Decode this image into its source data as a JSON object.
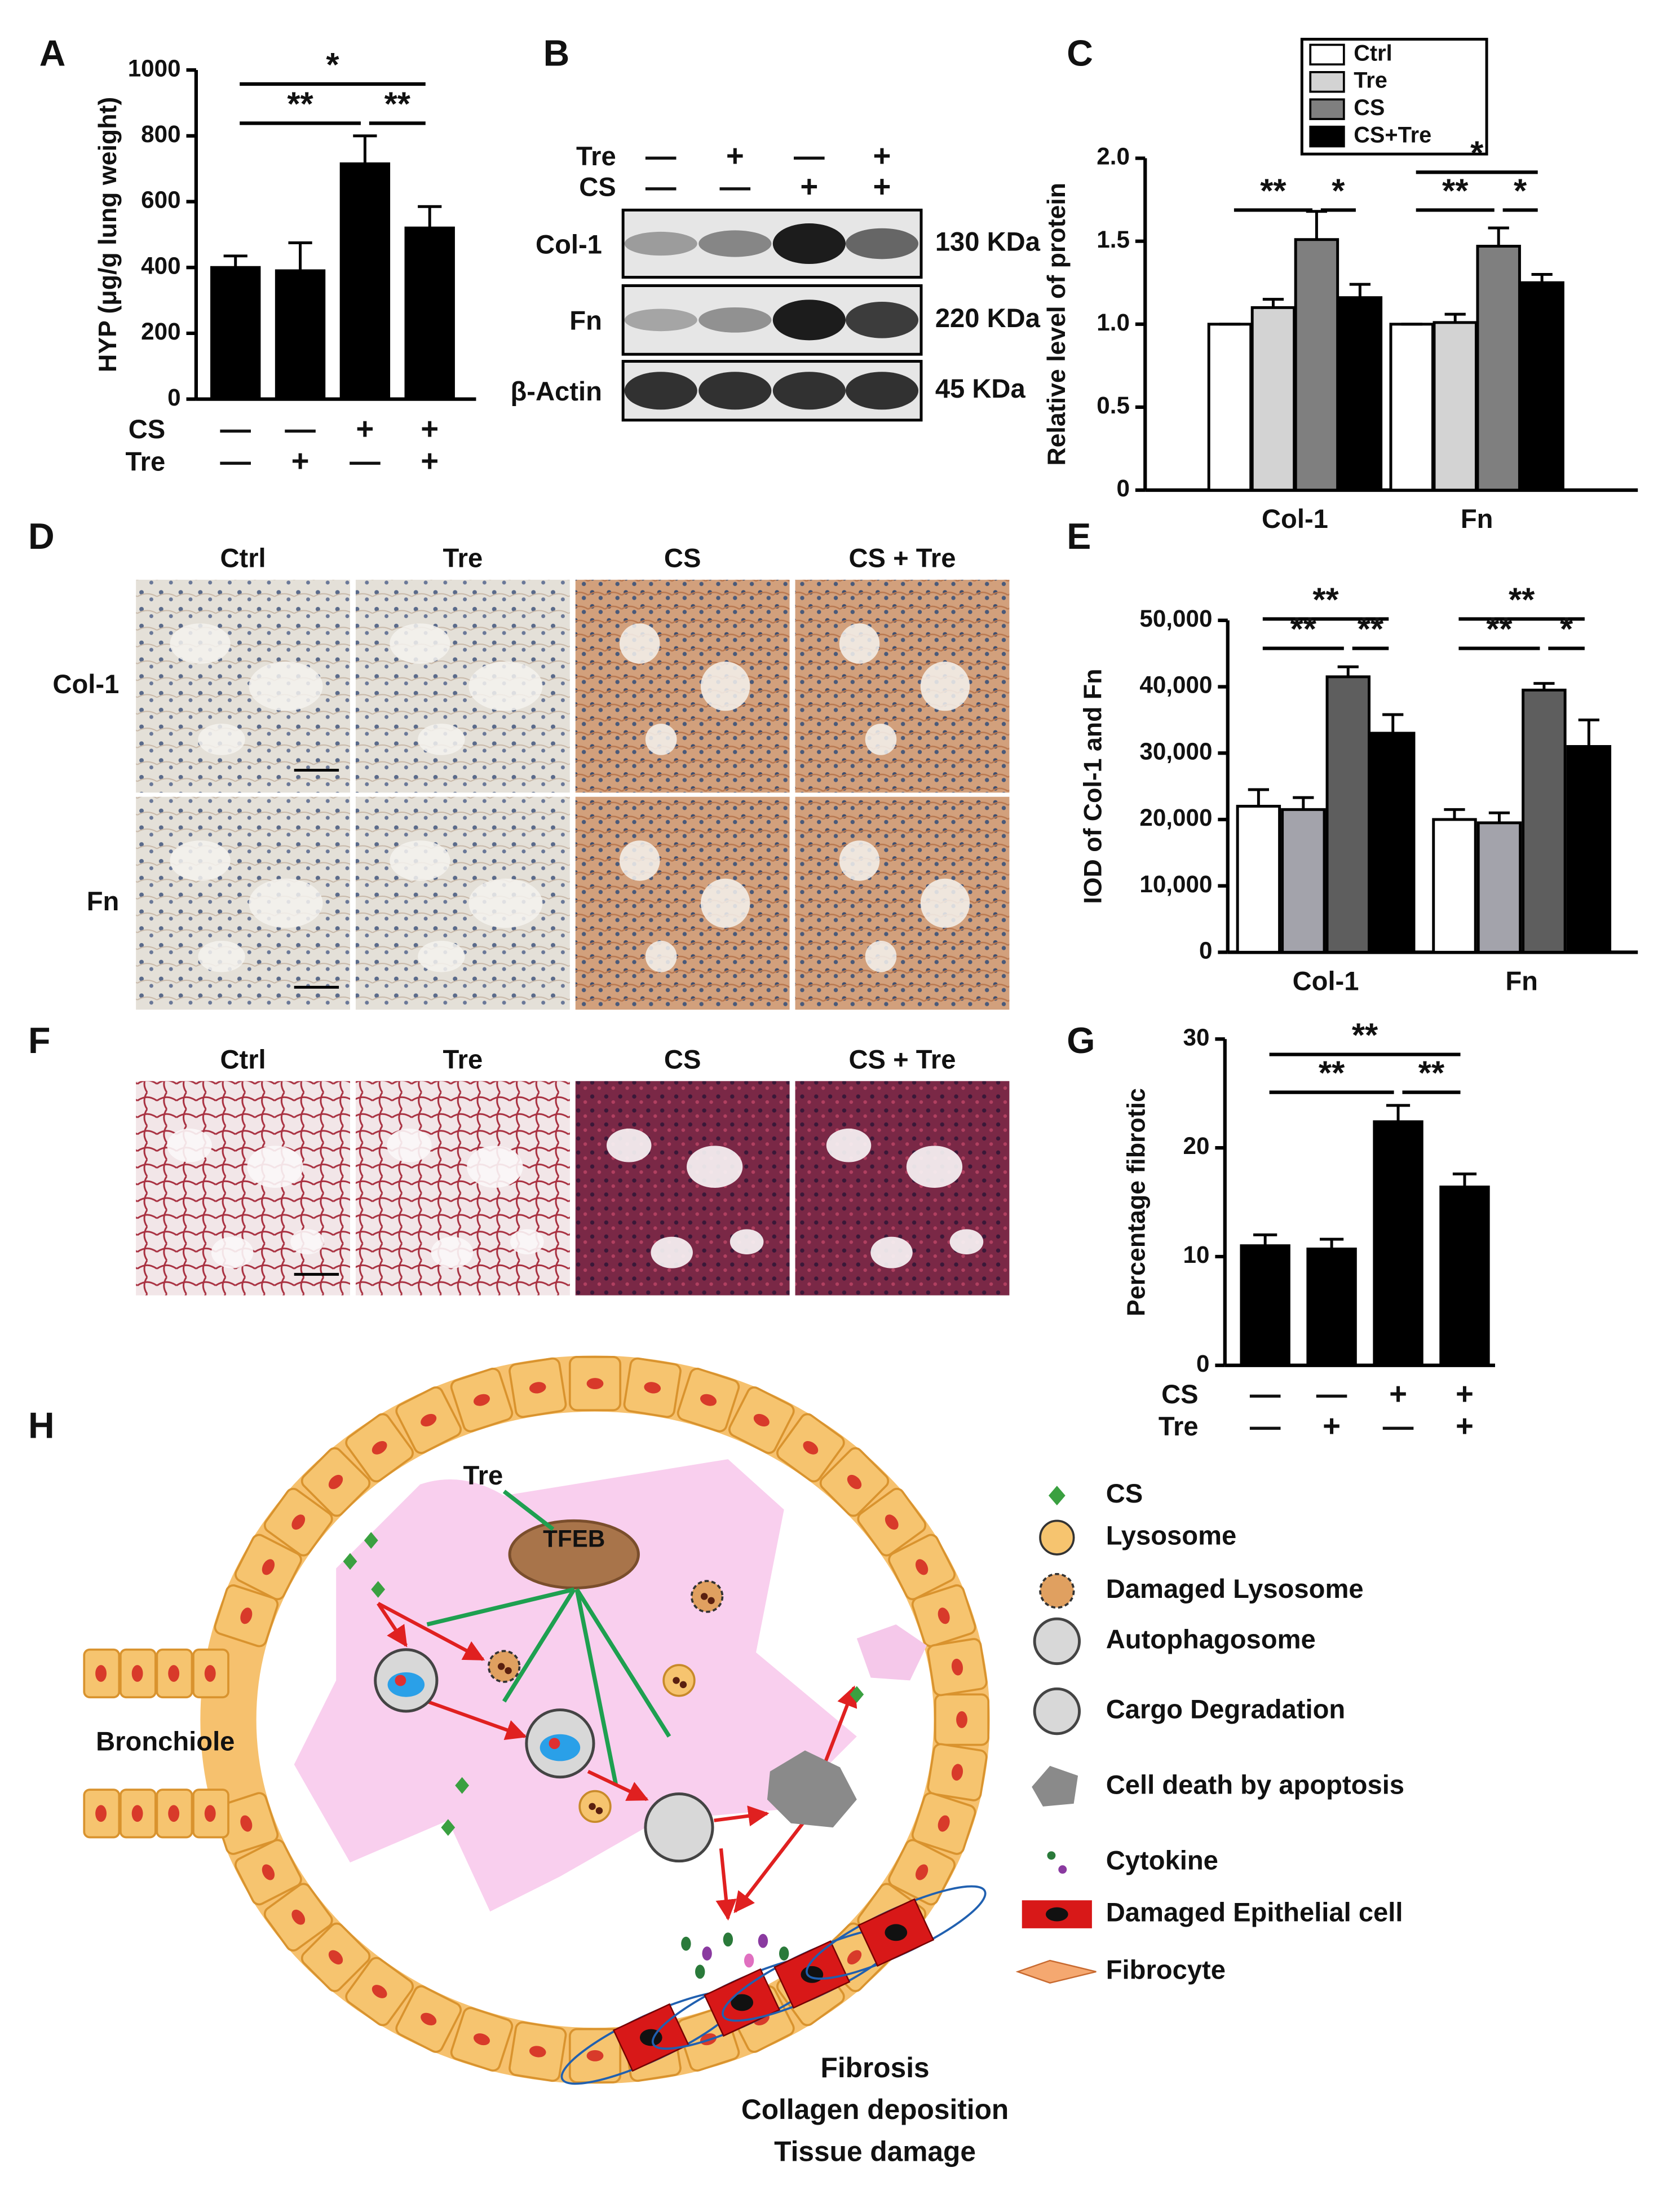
{
  "panel_labels": [
    "A",
    "B",
    "C",
    "D",
    "E",
    "F",
    "G",
    "H"
  ],
  "chart_data": [
    {
      "type": "bar",
      "ylabel": "HYP (μg/g lung weight)",
      "values": [
        400,
        390,
        715,
        520
      ],
      "errors": [
        35,
        85,
        85,
        65
      ],
      "color": "#000000",
      "ylim": [
        0,
        1000
      ],
      "yticks": [
        0,
        200,
        400,
        600,
        800,
        1000
      ],
      "condition_rows": [
        {
          "label": "CS",
          "signs": [
            "—",
            "—",
            "+",
            "+"
          ]
        },
        {
          "label": "Tre",
          "signs": [
            "—",
            "+",
            "—",
            "+"
          ]
        }
      ],
      "significance": [
        {
          "between": [
            0,
            3
          ],
          "label": "*"
        },
        {
          "between": [
            0,
            2
          ],
          "label": "**"
        },
        {
          "between": [
            2,
            3
          ],
          "label": "**"
        }
      ]
    },
    {
      "type": "grouped-bar",
      "ylabel": "Relative level of protein",
      "categories": [
        "Col-1",
        "Fn"
      ],
      "series": [
        {
          "name": "Ctrl",
          "color": "#ffffff",
          "values": [
            1.0,
            1.0
          ],
          "errors": [
            0,
            0
          ]
        },
        {
          "name": "Tre",
          "color": "#d3d3d3",
          "values": [
            1.1,
            1.01
          ],
          "errors": [
            0.05,
            0.05
          ]
        },
        {
          "name": "CS",
          "color": "#7f7f7f",
          "values": [
            1.51,
            1.47
          ],
          "errors": [
            0.17,
            0.11
          ]
        },
        {
          "name": "CS+Tre",
          "color": "#000000",
          "values": [
            1.16,
            1.25
          ],
          "errors": [
            0.08,
            0.05
          ]
        }
      ],
      "ylim": [
        0,
        2.0
      ],
      "yticks": [
        0,
        {
          "value": 0.5,
          "label": "0.5"
        },
        {
          "value": 1.0,
          "label": "1.0"
        },
        {
          "value": 1.5,
          "label": "1.5"
        },
        {
          "value": 2.0,
          "label": "2.0"
        }
      ],
      "legend": true,
      "significance": [
        {
          "category": 0,
          "between": [
            0,
            2
          ],
          "label": "**"
        },
        {
          "category": 0,
          "between": [
            2,
            3
          ],
          "label": "*"
        },
        {
          "category": 1,
          "between": [
            0,
            3
          ],
          "label": "*"
        },
        {
          "category": 1,
          "between": [
            0,
            2
          ],
          "label": "**"
        },
        {
          "category": 1,
          "between": [
            2,
            3
          ],
          "label": "*"
        }
      ]
    },
    {
      "type": "grouped-bar",
      "ylabel": "IOD of Col-1 and Fn",
      "categories": [
        "Col-1",
        "Fn"
      ],
      "series": [
        {
          "name": "Ctrl",
          "color": "#ffffff",
          "values": [
            22000,
            20000
          ],
          "errors": [
            2500,
            1500
          ]
        },
        {
          "name": "Tre",
          "color": "#a3a3ab",
          "values": [
            21500,
            19500
          ],
          "errors": [
            1800,
            1500
          ]
        },
        {
          "name": "CS",
          "color": "#5e5e5e",
          "values": [
            41500,
            39500
          ],
          "errors": [
            1500,
            1000
          ]
        },
        {
          "name": "CS+Tre",
          "color": "#000000",
          "values": [
            33000,
            31000
          ],
          "errors": [
            2800,
            4000
          ]
        }
      ],
      "ylim": [
        0,
        50000
      ],
      "yticks": [
        0,
        {
          "value": 10000,
          "label": "10,000"
        },
        {
          "value": 20000,
          "label": "20,000"
        },
        {
          "value": 30000,
          "label": "30,000"
        },
        {
          "value": 40000,
          "label": "40,000"
        },
        {
          "value": 50000,
          "label": "50,000"
        }
      ],
      "legend": false,
      "significance": [
        {
          "category": 0,
          "between": [
            0,
            3
          ],
          "label": "**"
        },
        {
          "category": 0,
          "between": [
            0,
            2
          ],
          "label": "**"
        },
        {
          "category": 0,
          "between": [
            2,
            3
          ],
          "label": "**"
        },
        {
          "category": 1,
          "between": [
            0,
            3
          ],
          "label": "**"
        },
        {
          "category": 1,
          "between": [
            0,
            2
          ],
          "label": "**"
        },
        {
          "category": 1,
          "between": [
            2,
            3
          ],
          "label": "*"
        }
      ]
    },
    {
      "type": "bar",
      "ylabel": "Percentage fibrotic",
      "values": [
        11,
        10.7,
        22.4,
        16.4
      ],
      "errors": [
        1,
        0.9,
        1.5,
        1.2
      ],
      "color": "#000000",
      "ylim": [
        0,
        30
      ],
      "yticks": [
        0,
        10,
        20,
        30
      ],
      "condition_rows": [
        {
          "label": "CS",
          "signs": [
            "—",
            "—",
            "+",
            "+"
          ]
        },
        {
          "label": "Tre",
          "signs": [
            "—",
            "+",
            "—",
            "+"
          ]
        }
      ],
      "significance": [
        {
          "between": [
            0,
            3
          ],
          "label": "**"
        },
        {
          "between": [
            0,
            2
          ],
          "label": "**"
        },
        {
          "between": [
            2,
            3
          ],
          "label": "**"
        }
      ]
    }
  ],
  "blot": {
    "conditions": [
      {
        "label": "Tre",
        "signs": [
          "—",
          "+",
          "—",
          "+"
        ]
      },
      {
        "label": "CS",
        "signs": [
          "—",
          "—",
          "+",
          "+"
        ]
      }
    ],
    "rows": [
      {
        "label": "Col-1",
        "size": "130 KDa"
      },
      {
        "label": "Fn",
        "size": "220 KDa"
      },
      {
        "label": "β-Actin",
        "size": "45 KDa"
      }
    ]
  },
  "histology_d": {
    "columns": [
      "Ctrl",
      "Tre",
      "CS",
      "CS + Tre"
    ],
    "rows": [
      "Col-1",
      "Fn"
    ]
  },
  "histology_f": {
    "columns": [
      "Ctrl",
      "Tre",
      "CS",
      "CS + Tre"
    ]
  },
  "diagram": {
    "tre": "Tre",
    "tfeb": "TFEB",
    "bronchiole": "Bronchiole",
    "outcomes": [
      "Fibrosis",
      "Collagen deposition",
      "Tissue damage"
    ],
    "legend": [
      "CS",
      "Lysosome",
      "Damaged Lysosome",
      "Autophagosome",
      "Cargo Degradation",
      "Cell death by apoptosis",
      "Cytokine",
      "Damaged Epithelial cell",
      "Fibrocyte"
    ]
  }
}
